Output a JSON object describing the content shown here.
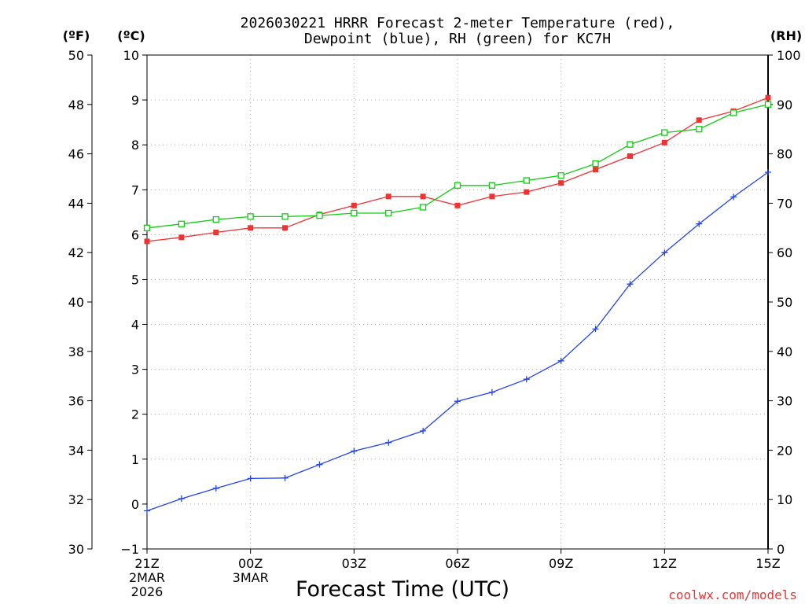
{
  "chart_data": {
    "type": "line",
    "title_line1": "2026030221 HRRR Forecast 2-meter Temperature (red),",
    "title_line2": "Dewpoint (blue), RH (green) for KC7H",
    "left_outer_unit": "(ºF)",
    "left_inner_unit": "(ºC)",
    "right_unit": "(RH)",
    "xlabel": "Forecast Time (UTC)",
    "watermark": "coolwx.com/models",
    "colors": {
      "temperature": "#ee3333",
      "dewpoint": "#2244ee",
      "rh": "#11cc11",
      "grid": "#aaaaaa"
    },
    "x_hours": [
      0,
      1,
      2,
      3,
      4,
      5,
      6,
      7,
      8,
      9,
      10,
      11,
      12,
      13,
      14,
      15,
      16,
      17,
      18
    ],
    "x_ticks": [
      {
        "hour": 0,
        "label": "21Z",
        "sub1": "2MAR",
        "sub2": "2026"
      },
      {
        "hour": 3,
        "label": "00Z",
        "sub1": "3MAR",
        "sub2": ""
      },
      {
        "hour": 6,
        "label": "03Z",
        "sub1": "",
        "sub2": ""
      },
      {
        "hour": 9,
        "label": "06Z",
        "sub1": "",
        "sub2": ""
      },
      {
        "hour": 12,
        "label": "09Z",
        "sub1": "",
        "sub2": ""
      },
      {
        "hour": 15,
        "label": "12Z",
        "sub1": "",
        "sub2": ""
      },
      {
        "hour": 18,
        "label": "15Z",
        "sub1": "",
        "sub2": ""
      }
    ],
    "ylim_c": [
      -1,
      10
    ],
    "ylim_f": [
      30,
      50
    ],
    "ylim_rh": [
      0,
      100
    ],
    "yticks_c": [
      -1,
      0,
      1,
      2,
      3,
      4,
      5,
      6,
      7,
      8,
      9,
      10
    ],
    "yticks_c_labels": [
      "−1",
      "0",
      "1",
      "2",
      "3",
      "4",
      "5",
      "6",
      "7",
      "8",
      "9",
      "10"
    ],
    "yticks_f": [
      30,
      32,
      34,
      36,
      38,
      40,
      42,
      44,
      46,
      48,
      50
    ],
    "yticks_rh": [
      0,
      10,
      20,
      30,
      40,
      50,
      60,
      70,
      80,
      90,
      100
    ],
    "series": [
      {
        "name": "Temperature",
        "unit": "C",
        "color_key": "temperature",
        "marker": "filled-square",
        "values": [
          5.85,
          5.94,
          6.05,
          6.15,
          6.15,
          6.45,
          6.65,
          6.85,
          6.85,
          6.65,
          6.85,
          6.95,
          7.15,
          7.45,
          7.75,
          8.05,
          8.55,
          8.75,
          9.05
        ]
      },
      {
        "name": "Dewpoint",
        "unit": "C",
        "color_key": "dewpoint",
        "marker": "plus",
        "values": [
          -0.15,
          0.12,
          0.35,
          0.57,
          0.58,
          0.88,
          1.18,
          1.37,
          1.63,
          2.29,
          2.49,
          2.78,
          3.19,
          3.9,
          4.9,
          5.6,
          6.24,
          6.84,
          7.39
        ]
      },
      {
        "name": "RH",
        "unit": "%",
        "color_key": "rh",
        "marker": "open-square",
        "values": [
          65.0,
          65.8,
          66.7,
          67.3,
          67.3,
          67.5,
          68.0,
          68.0,
          69.2,
          73.6,
          73.6,
          74.6,
          75.6,
          78.0,
          81.9,
          84.3,
          85.0,
          88.3,
          90.0
        ]
      }
    ]
  }
}
